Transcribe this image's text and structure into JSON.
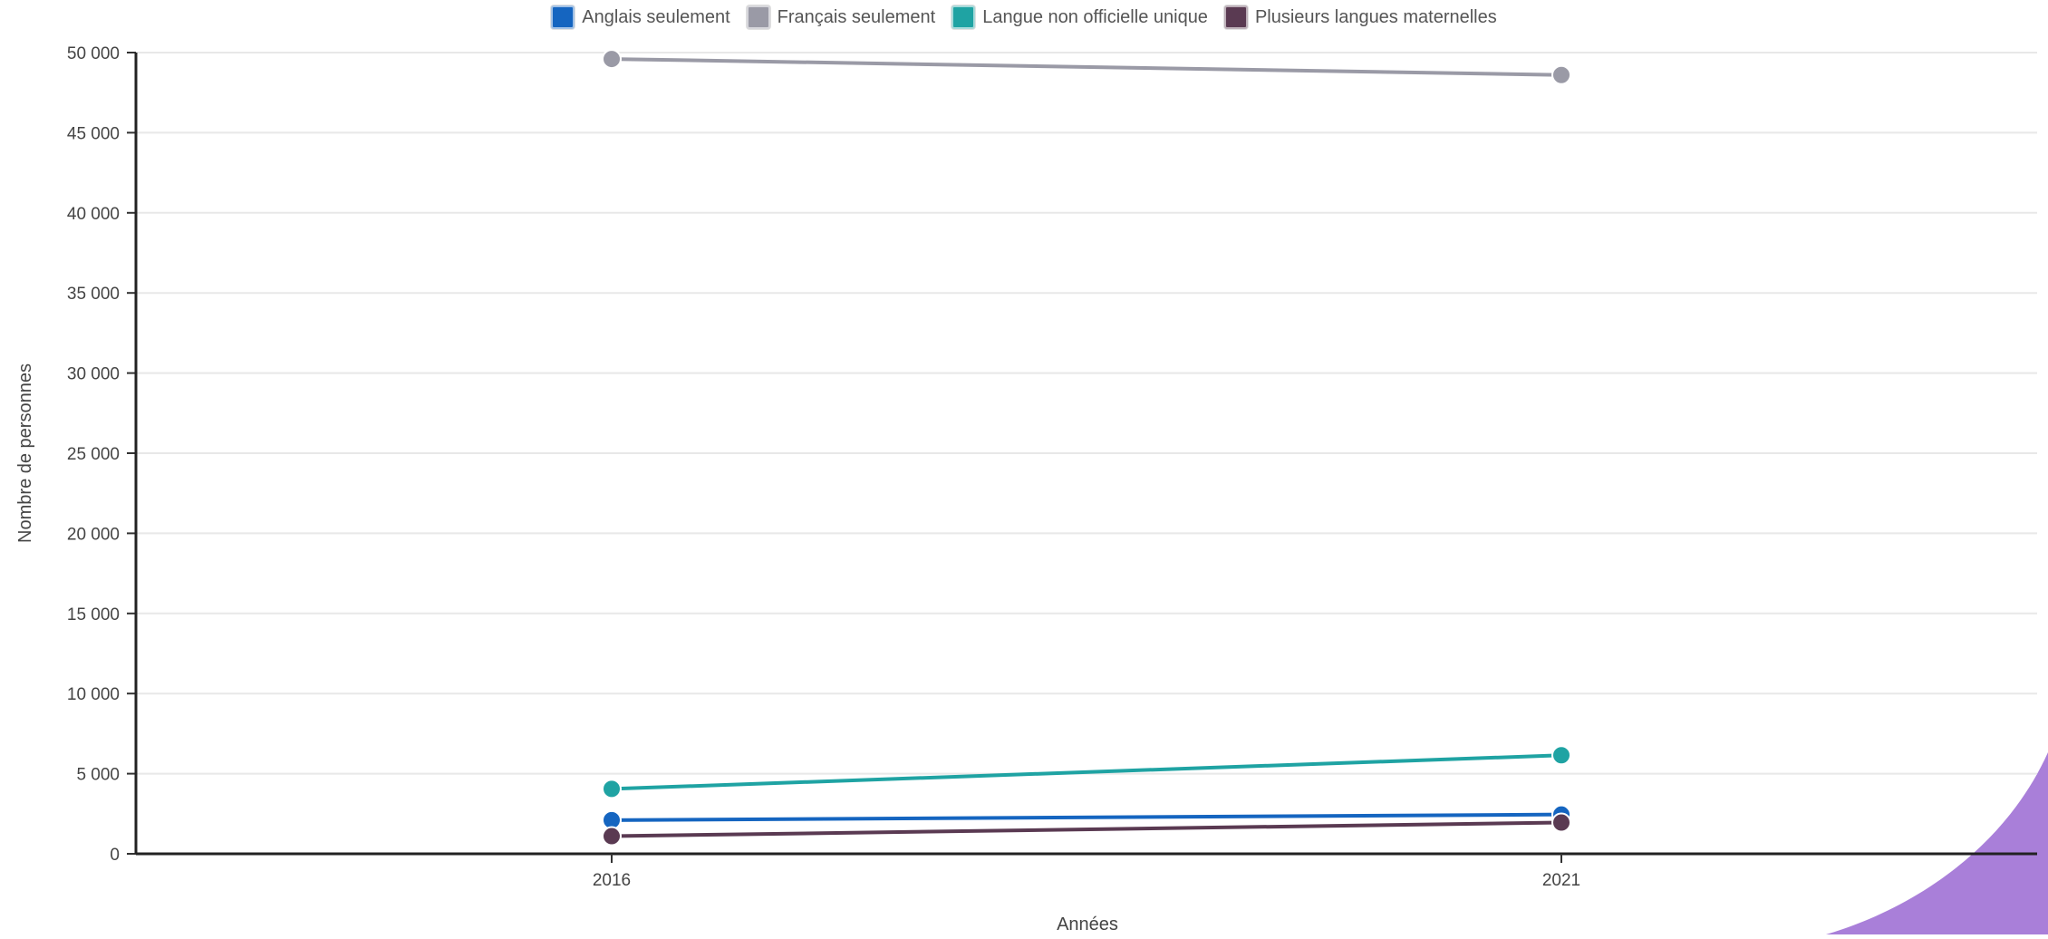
{
  "chart_data": {
    "type": "line",
    "title": "",
    "xlabel": "Années",
    "ylabel": "Nombre de personnes",
    "categories": [
      "2016",
      "2021"
    ],
    "ylim": [
      0,
      50000
    ],
    "yticks": [
      0,
      5000,
      10000,
      15000,
      20000,
      25000,
      30000,
      35000,
      40000,
      45000,
      50000
    ],
    "ytick_labels": [
      "0",
      "5 000",
      "10 000",
      "15 000",
      "20 000",
      "25 000",
      "30 000",
      "35 000",
      "40 000",
      "45 000",
      "50 000"
    ],
    "grid": true,
    "legend_position": "top-center",
    "series": [
      {
        "key": "anglais",
        "name": "Anglais seulement",
        "color": "#1565c0",
        "values": [
          2100,
          2450
        ]
      },
      {
        "key": "francais",
        "name": "Français seulement",
        "color": "#9a9aa6",
        "values": [
          49600,
          48600
        ]
      },
      {
        "key": "non-officielle",
        "name": "Langue non officielle unique",
        "color": "#1fa3a3",
        "values": [
          4050,
          6150
        ]
      },
      {
        "key": "plusieurs",
        "name": "Plusieurs langues maternelles",
        "color": "#5a3a52",
        "values": [
          1100,
          1950
        ]
      }
    ]
  },
  "decoration": {
    "corner_shape_color": "#a97fd9"
  }
}
